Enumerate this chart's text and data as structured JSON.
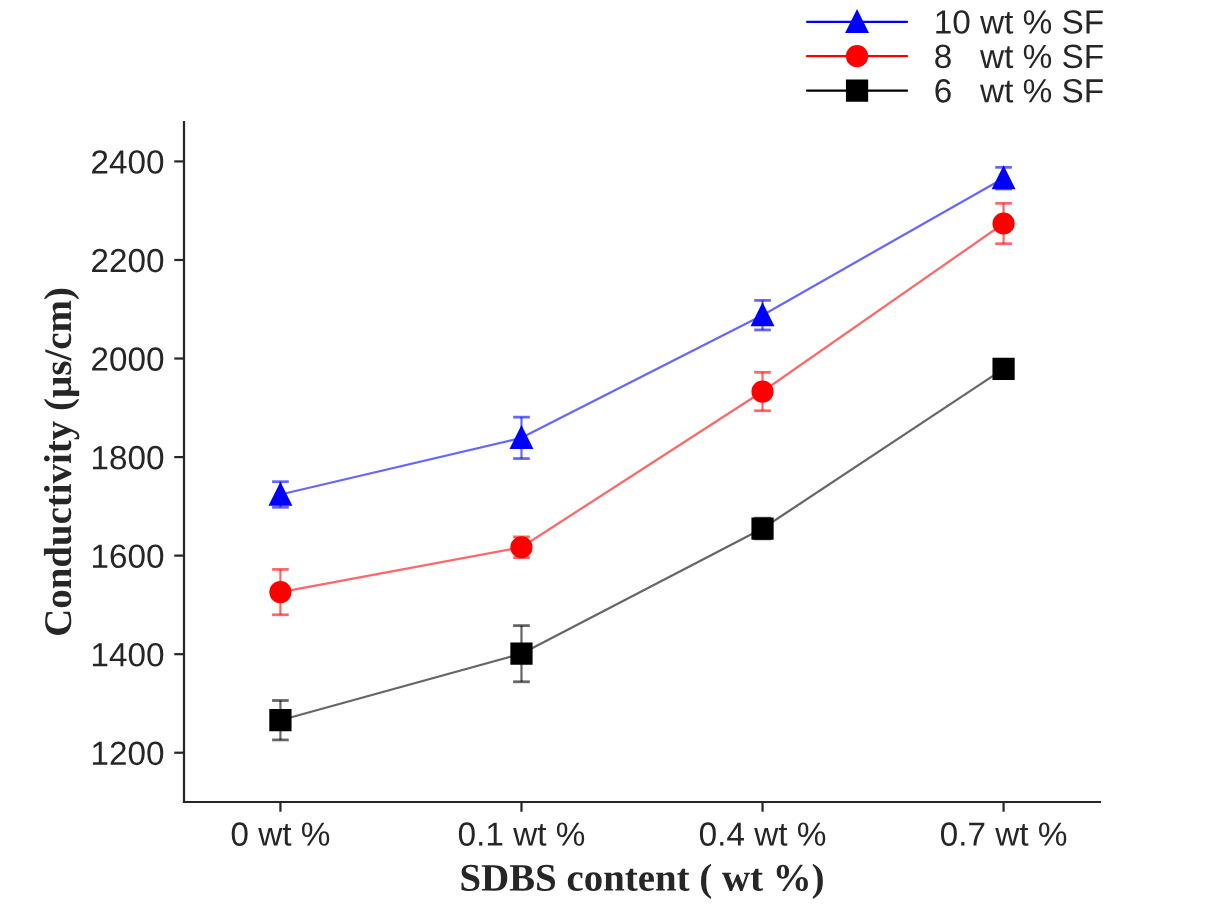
{
  "chart_data": {
    "type": "line",
    "xlabel": "SDBS content ( wt %)",
    "ylabel": "Conductivity (µs/cm)",
    "categories": [
      "0 wt %",
      "0.1 wt %",
      "0.4 wt %",
      "0.7 wt %"
    ],
    "series": [
      {
        "name": "10 wt % SF",
        "color": "#0000ff",
        "marker": "triangle",
        "values": [
          1724,
          1839,
          2088,
          2366
        ],
        "errors": [
          26,
          42,
          30,
          22
        ]
      },
      {
        "name": "8   wt % SF",
        "color": "#ff0000",
        "marker": "circle",
        "values": [
          1526,
          1617,
          1933,
          2274
        ],
        "errors": [
          46,
          21,
          39,
          41
        ]
      },
      {
        "name": "6   wt % SF",
        "color": "#000000",
        "marker": "square",
        "values": [
          1266,
          1401,
          1655,
          1979
        ],
        "errors": [
          40,
          57,
          21,
          10
        ]
      }
    ],
    "ylim": [
      1100,
      2480
    ],
    "yticks": [
      1200,
      1400,
      1600,
      1800,
      2000,
      2200,
      2400
    ],
    "legend": "top right",
    "grid": false
  }
}
